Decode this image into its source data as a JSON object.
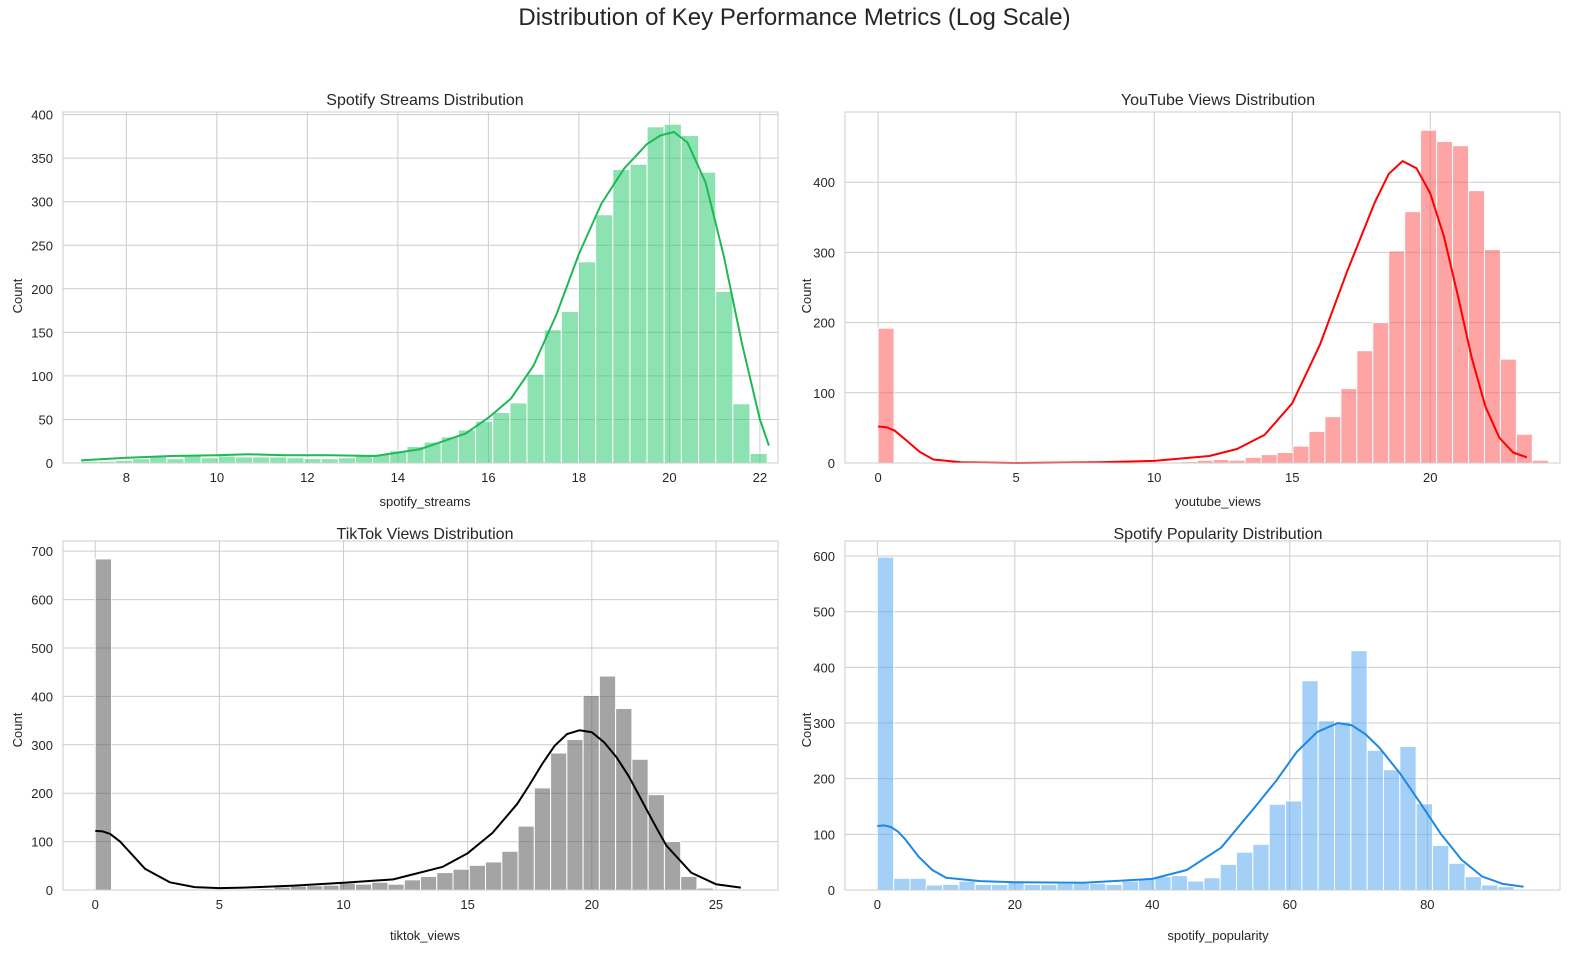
{
  "figure_title": "Distribution of Key Performance Metrics (Log Scale)",
  "chart_data": [
    {
      "type": "bar",
      "title": "Spotify Streams Distribution",
      "xlabel": "spotify_streams",
      "ylabel": "Count",
      "bar_color": "#2ecc71",
      "kde_color": "#1db954",
      "xlim": [
        6.6,
        22.4
      ],
      "ylim": [
        0,
        403
      ],
      "xticks": [
        8,
        10,
        12,
        14,
        16,
        18,
        20,
        22
      ],
      "yticks": [
        0,
        50,
        100,
        150,
        200,
        250,
        300,
        350,
        400
      ],
      "bins": {
        "start": 7.0,
        "width": 0.379,
        "counts": [
          2,
          2,
          3,
          5,
          7,
          5,
          8,
          6,
          8,
          7,
          7,
          7,
          6,
          5,
          5,
          6,
          8,
          10,
          14,
          19,
          24,
          30,
          38,
          48,
          58,
          69,
          102,
          153,
          174,
          231,
          285,
          337,
          343,
          386,
          389,
          376,
          334,
          197,
          68,
          11
        ]
      },
      "kde": {
        "x": [
          7.0,
          8.0,
          9.0,
          10.0,
          10.7,
          11.5,
          12.5,
          13.5,
          14.5,
          15.5,
          16.0,
          16.5,
          17.0,
          17.5,
          18.0,
          18.5,
          19.0,
          19.5,
          19.8,
          20.1,
          20.4,
          20.8,
          21.2,
          21.6,
          22.0,
          22.2
        ],
        "y": [
          3,
          6,
          8,
          9,
          10,
          9,
          9,
          8,
          16,
          34,
          52,
          74,
          112,
          170,
          240,
          298,
          338,
          366,
          376,
          380,
          368,
          322,
          238,
          138,
          50,
          20
        ]
      }
    },
    {
      "type": "bar",
      "title": "YouTube Views Distribution",
      "xlabel": "youtube_views",
      "ylabel": "Count",
      "bar_color": "#ff5a5a",
      "kde_color": "#ff0000",
      "xlim": [
        -1.2,
        24.7
      ],
      "ylim": [
        0,
        500
      ],
      "xticks": [
        0,
        5,
        10,
        15,
        20
      ],
      "yticks": [
        0,
        100,
        200,
        300,
        400
      ],
      "bins": {
        "start": 0.0,
        "width": 0.578,
        "counts": [
          192,
          0,
          0,
          0,
          0,
          0,
          0,
          0,
          0,
          0,
          0,
          0,
          0,
          0,
          0,
          0,
          0,
          0,
          1,
          2,
          4,
          5,
          4,
          8,
          12,
          15,
          24,
          45,
          66,
          106,
          160,
          200,
          302,
          358,
          474,
          458,
          452,
          388,
          304,
          148,
          41,
          4
        ]
      },
      "kde": {
        "x": [
          0.0,
          0.3,
          0.6,
          1.0,
          1.5,
          2.0,
          3.0,
          5.0,
          8.0,
          10.0,
          12.0,
          13.0,
          14.0,
          15.0,
          16.0,
          17.0,
          18.0,
          18.5,
          19.0,
          19.5,
          20.0,
          20.5,
          21.0,
          21.5,
          22.0,
          22.5,
          23.0,
          23.5
        ],
        "y": [
          52,
          51,
          46,
          33,
          16,
          5,
          1,
          0,
          1,
          3,
          10,
          20,
          40,
          85,
          168,
          274,
          372,
          412,
          430,
          420,
          384,
          322,
          238,
          150,
          80,
          36,
          15,
          8
        ]
      }
    },
    {
      "type": "bar",
      "title": "TikTok Views Distribution",
      "xlabel": "tiktok_views",
      "ylabel": "Count",
      "bar_color": "#595959",
      "kde_color": "#000000",
      "xlim": [
        -1.3,
        27.5
      ],
      "ylim": [
        0,
        721
      ],
      "xticks": [
        0,
        5,
        10,
        15,
        20,
        25
      ],
      "yticks": [
        0,
        100,
        200,
        300,
        400,
        500,
        600,
        700
      ],
      "bins": {
        "start": 0.0,
        "width": 0.655,
        "counts": [
          684,
          0,
          0,
          0,
          0,
          0,
          0,
          0,
          0,
          0,
          3,
          6,
          8,
          9,
          10,
          14,
          12,
          16,
          12,
          21,
          28,
          36,
          43,
          51,
          58,
          80,
          132,
          211,
          283,
          311,
          402,
          442,
          375,
          270,
          197,
          100,
          28,
          4
        ]
      },
      "kde": {
        "x": [
          0.0,
          0.3,
          0.6,
          1.0,
          1.5,
          2.0,
          3.0,
          4.0,
          5.0,
          6.0,
          8.0,
          10.0,
          12.0,
          14.0,
          15.0,
          16.0,
          17.0,
          17.5,
          18.0,
          18.5,
          19.0,
          19.5,
          20.0,
          20.5,
          21.0,
          21.5,
          22.0,
          22.5,
          23.0,
          24.0,
          25.0,
          26.0
        ],
        "y": [
          122,
          121,
          116,
          100,
          72,
          44,
          16,
          6,
          4,
          5,
          9,
          15,
          22,
          48,
          76,
          118,
          178,
          218,
          260,
          298,
          322,
          330,
          326,
          305,
          274,
          234,
          186,
          138,
          92,
          36,
          12,
          5
        ]
      }
    },
    {
      "type": "bar",
      "title": "Spotify Popularity Distribution",
      "xlabel": "spotify_popularity",
      "ylabel": "Count",
      "bar_color": "#5aaaf0",
      "kde_color": "#1e88e5",
      "xlim": [
        -4.7,
        99.3
      ],
      "ylim": [
        0,
        627
      ],
      "xticks": [
        0,
        20,
        40,
        60,
        80
      ],
      "yticks": [
        0,
        100,
        200,
        300,
        400,
        500,
        600
      ],
      "bins": {
        "start": 0.0,
        "width": 2.375,
        "counts": [
          598,
          21,
          21,
          9,
          10,
          16,
          10,
          10,
          16,
          10,
          10,
          12,
          12,
          12,
          10,
          16,
          21,
          24,
          26,
          16,
          22,
          46,
          68,
          82,
          154,
          160,
          376,
          304,
          302,
          430,
          251,
          216,
          258,
          155,
          80,
          48,
          24,
          9,
          6
        ]
      },
      "kde": {
        "x": [
          0.0,
          1.0,
          2.0,
          3.0,
          4.0,
          5.0,
          6.0,
          8.0,
          10.0,
          15.0,
          20.0,
          30.0,
          40.0,
          45.0,
          50.0,
          55.0,
          58.0,
          61.0,
          64.0,
          67.0,
          69.0,
          71.0,
          73.0,
          76.0,
          79.0,
          82.0,
          85.0,
          88.0,
          91.0,
          94.0
        ],
        "y": [
          115,
          116,
          113,
          105,
          92,
          76,
          60,
          36,
          22,
          16,
          14,
          13,
          20,
          36,
          76,
          150,
          196,
          248,
          284,
          300,
          296,
          280,
          256,
          210,
          156,
          100,
          54,
          24,
          11,
          6
        ]
      }
    }
  ]
}
